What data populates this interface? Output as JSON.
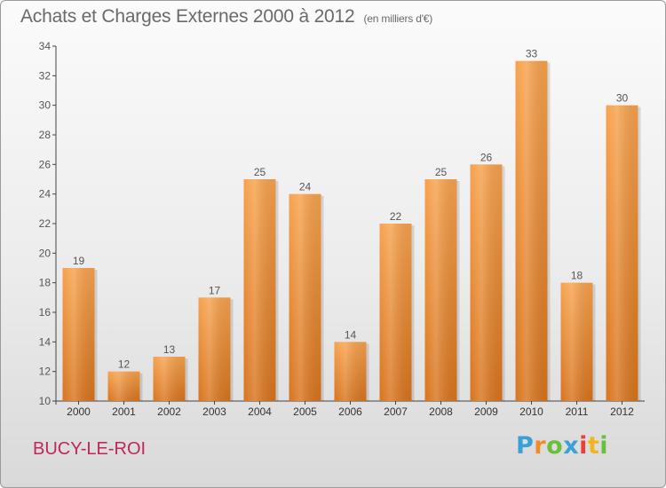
{
  "title": "Achats et Charges Externes 2000 à 2012",
  "subtitle": "(en milliers d'€)",
  "commune": "BUCY-LE-ROI",
  "logo": {
    "text": "Proxiti",
    "letters": [
      {
        "char": "P",
        "color": "#3aa0d8"
      },
      {
        "char": "r",
        "color": "#f28c28"
      },
      {
        "char": "o",
        "color": "#6cbf3c"
      },
      {
        "char": "x",
        "color": "#3aa0d8"
      },
      {
        "char": "i",
        "color": "#e8403a"
      },
      {
        "char": "t",
        "color": "#f2b51c"
      },
      {
        "char": "i",
        "color": "#6cbf3c"
      }
    ]
  },
  "colors": {
    "bar_top": "#f7a24d",
    "bar_bottom": "#d8741e",
    "label": "#555555",
    "commune": "#c0265a"
  },
  "chart_data": {
    "type": "bar",
    "categories": [
      "2000",
      "2001",
      "2002",
      "2003",
      "2004",
      "2005",
      "2006",
      "2007",
      "2008",
      "2009",
      "2010",
      "2011",
      "2012"
    ],
    "values": [
      19,
      12,
      13,
      17,
      25,
      24,
      14,
      22,
      25,
      26,
      33,
      18,
      30
    ],
    "ylim": [
      10,
      34
    ],
    "yticks": [
      10,
      12,
      14,
      16,
      18,
      20,
      22,
      24,
      26,
      28,
      30,
      32,
      34
    ],
    "grid": false,
    "legend": "none"
  }
}
